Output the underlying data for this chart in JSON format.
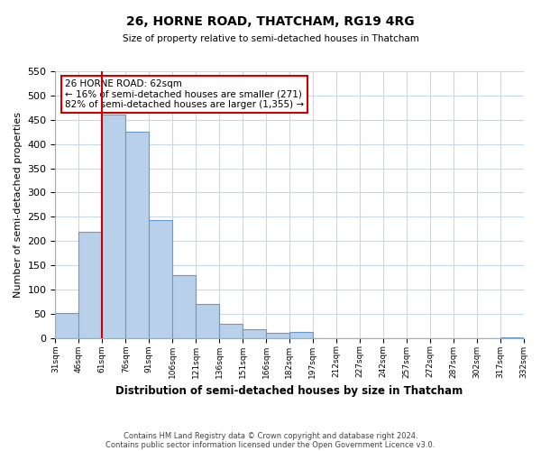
{
  "title": "26, HORNE ROAD, THATCHAM, RG19 4RG",
  "subtitle": "Size of property relative to semi-detached houses in Thatcham",
  "bar_values": [
    52,
    218,
    460,
    425,
    243,
    130,
    70,
    30,
    18,
    10,
    12,
    0,
    0,
    0,
    0,
    0,
    0,
    0,
    0,
    2
  ],
  "bin_labels": [
    "31sqm",
    "46sqm",
    "61sqm",
    "76sqm",
    "91sqm",
    "106sqm",
    "121sqm",
    "136sqm",
    "151sqm",
    "166sqm",
    "182sqm",
    "197sqm",
    "212sqm",
    "227sqm",
    "242sqm",
    "257sqm",
    "272sqm",
    "287sqm",
    "302sqm",
    "317sqm",
    "332sqm"
  ],
  "bar_color": "#b8d0ea",
  "bar_edgecolor": "#6699cc",
  "property_line_color": "#cc0000",
  "property_bin_index": 2,
  "annotation_box_text": "26 HORNE ROAD: 62sqm\n← 16% of semi-detached houses are smaller (271)\n82% of semi-detached houses are larger (1,355) →",
  "annotation_box_edgecolor": "#cc0000",
  "ylabel": "Number of semi-detached properties",
  "xlabel": "Distribution of semi-detached houses by size in Thatcham",
  "ylim": [
    0,
    550
  ],
  "yticks": [
    0,
    50,
    100,
    150,
    200,
    250,
    300,
    350,
    400,
    450,
    500,
    550
  ],
  "footer_line1": "Contains HM Land Registry data © Crown copyright and database right 2024.",
  "footer_line2": "Contains public sector information licensed under the Open Government Licence v3.0.",
  "background_color": "#ffffff",
  "grid_color": "#c8d8ec"
}
